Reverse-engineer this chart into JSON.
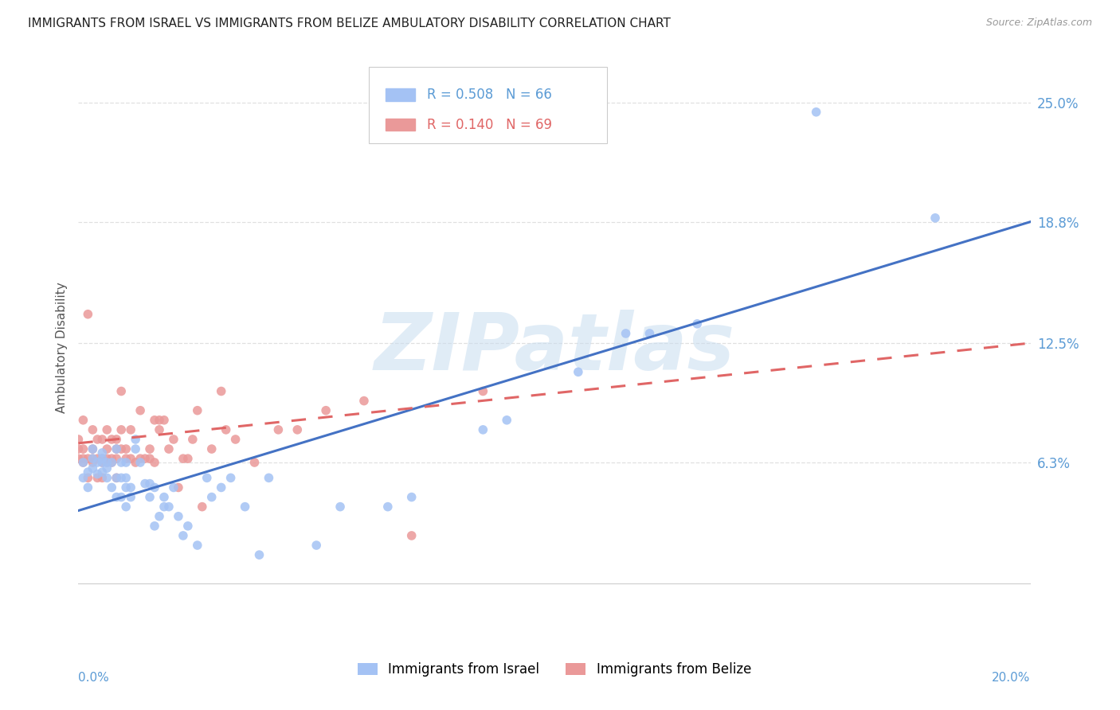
{
  "title": "IMMIGRANTS FROM ISRAEL VS IMMIGRANTS FROM BELIZE AMBULATORY DISABILITY CORRELATION CHART",
  "source": "Source: ZipAtlas.com",
  "ylabel": "Ambulatory Disability",
  "xlim": [
    0.0,
    0.2
  ],
  "ylim": [
    -0.025,
    0.27
  ],
  "yticks": [
    0.063,
    0.125,
    0.188,
    0.25
  ],
  "ytick_labels": [
    "6.3%",
    "12.5%",
    "18.8%",
    "25.0%"
  ],
  "xtick_left": "0.0%",
  "xtick_right": "20.0%",
  "background_color": "#ffffff",
  "grid_color": "#e0e0e0",
  "watermark": "ZIPatlas",
  "israel": {
    "name": "Immigrants from Israel",
    "R": 0.508,
    "N": 66,
    "marker_color": "#a4c2f4",
    "line_color": "#4472c4",
    "line_style": "solid",
    "line_y0": 0.038,
    "line_y1": 0.188,
    "x": [
      0.001,
      0.002,
      0.003,
      0.003,
      0.004,
      0.005,
      0.005,
      0.005,
      0.006,
      0.006,
      0.007,
      0.007,
      0.008,
      0.008,
      0.008,
      0.009,
      0.009,
      0.009,
      0.01,
      0.01,
      0.01,
      0.01,
      0.011,
      0.011,
      0.012,
      0.012,
      0.013,
      0.014,
      0.015,
      0.015,
      0.016,
      0.016,
      0.017,
      0.018,
      0.018,
      0.019,
      0.02,
      0.021,
      0.022,
      0.023,
      0.025,
      0.027,
      0.028,
      0.03,
      0.032,
      0.035,
      0.038,
      0.04,
      0.05,
      0.055,
      0.065,
      0.07,
      0.085,
      0.09,
      0.105,
      0.115,
      0.12,
      0.13,
      0.155,
      0.18,
      0.001,
      0.002,
      0.003,
      0.004,
      0.005,
      0.006
    ],
    "y": [
      0.063,
      0.058,
      0.065,
      0.07,
      0.063,
      0.058,
      0.063,
      0.068,
      0.055,
      0.063,
      0.05,
      0.063,
      0.045,
      0.055,
      0.07,
      0.045,
      0.055,
      0.063,
      0.04,
      0.05,
      0.055,
      0.063,
      0.045,
      0.05,
      0.07,
      0.075,
      0.063,
      0.052,
      0.045,
      0.052,
      0.03,
      0.05,
      0.035,
      0.04,
      0.045,
      0.04,
      0.05,
      0.035,
      0.025,
      0.03,
      0.02,
      0.055,
      0.045,
      0.05,
      0.055,
      0.04,
      0.015,
      0.055,
      0.02,
      0.04,
      0.04,
      0.045,
      0.08,
      0.085,
      0.11,
      0.13,
      0.13,
      0.135,
      0.245,
      0.19,
      0.055,
      0.05,
      0.06,
      0.057,
      0.065,
      0.06
    ]
  },
  "belize": {
    "name": "Immigrants from Belize",
    "R": 0.14,
    "N": 69,
    "marker_color": "#ea9999",
    "line_color": "#e06666",
    "line_style": "dashed",
    "line_y0": 0.073,
    "line_y1": 0.125,
    "x": [
      0.0,
      0.0,
      0.0,
      0.001,
      0.001,
      0.001,
      0.001,
      0.002,
      0.002,
      0.002,
      0.003,
      0.003,
      0.003,
      0.003,
      0.004,
      0.004,
      0.004,
      0.005,
      0.005,
      0.005,
      0.005,
      0.006,
      0.006,
      0.006,
      0.006,
      0.007,
      0.007,
      0.007,
      0.008,
      0.008,
      0.008,
      0.008,
      0.009,
      0.009,
      0.009,
      0.01,
      0.01,
      0.011,
      0.011,
      0.012,
      0.013,
      0.013,
      0.014,
      0.015,
      0.015,
      0.016,
      0.016,
      0.017,
      0.017,
      0.018,
      0.019,
      0.02,
      0.021,
      0.022,
      0.023,
      0.024,
      0.025,
      0.026,
      0.028,
      0.03,
      0.031,
      0.033,
      0.037,
      0.042,
      0.046,
      0.052,
      0.06,
      0.07,
      0.085
    ],
    "y": [
      0.065,
      0.07,
      0.075,
      0.063,
      0.065,
      0.07,
      0.085,
      0.055,
      0.065,
      0.14,
      0.063,
      0.065,
      0.07,
      0.08,
      0.055,
      0.065,
      0.075,
      0.055,
      0.063,
      0.065,
      0.075,
      0.063,
      0.065,
      0.07,
      0.08,
      0.063,
      0.065,
      0.075,
      0.055,
      0.065,
      0.07,
      0.075,
      0.07,
      0.08,
      0.1,
      0.065,
      0.07,
      0.065,
      0.08,
      0.063,
      0.065,
      0.09,
      0.065,
      0.065,
      0.07,
      0.063,
      0.085,
      0.08,
      0.085,
      0.085,
      0.07,
      0.075,
      0.05,
      0.065,
      0.065,
      0.075,
      0.09,
      0.04,
      0.07,
      0.1,
      0.08,
      0.075,
      0.063,
      0.08,
      0.08,
      0.09,
      0.095,
      0.025,
      0.1
    ]
  }
}
